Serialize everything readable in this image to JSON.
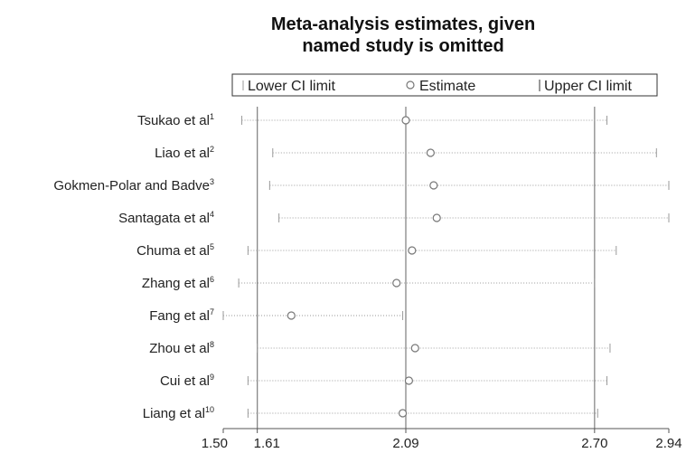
{
  "chart_data": {
    "type": "forest",
    "title_lines": [
      "Meta-analysis estimates, given",
      "named study is omitted"
    ],
    "legend": {
      "lower": "Lower CI limit",
      "estimate": "Estimate",
      "upper": "Upper CI limit",
      "placement": "top"
    },
    "x_ticks": [
      {
        "value": 1.5,
        "label": "1.50"
      },
      {
        "value": 1.61,
        "label": "1.61"
      },
      {
        "value": 2.09,
        "label": "2.09"
      },
      {
        "value": 2.7,
        "label": "2.70"
      },
      {
        "value": 2.94,
        "label": "2.94"
      }
    ],
    "xlim": [
      1.5,
      2.94
    ],
    "reference_lines": [
      1.61,
      2.09,
      2.7
    ],
    "studies": [
      {
        "name": "Tsukao et al",
        "ref": "1",
        "lower": 1.56,
        "estimate": 2.09,
        "upper": 2.74
      },
      {
        "name": "Liao et al",
        "ref": "2",
        "lower": 1.66,
        "estimate": 2.17,
        "upper": 2.9
      },
      {
        "name": "Gokmen-Polar and Badve",
        "ref": "3",
        "lower": 1.65,
        "estimate": 2.18,
        "upper": 2.94
      },
      {
        "name": "Santagata et al",
        "ref": "4",
        "lower": 1.68,
        "estimate": 2.19,
        "upper": 2.94
      },
      {
        "name": "Chuma et al",
        "ref": "5",
        "lower": 1.58,
        "estimate": 2.11,
        "upper": 2.77
      },
      {
        "name": "Zhang et al",
        "ref": "6",
        "lower": 1.55,
        "estimate": 2.06,
        "upper": 2.7
      },
      {
        "name": "Fang et al",
        "ref": "7",
        "lower": 1.5,
        "estimate": 1.72,
        "upper": 2.08
      },
      {
        "name": "Zhou et al",
        "ref": "8",
        "lower": 1.61,
        "estimate": 2.12,
        "upper": 2.75
      },
      {
        "name": "Cui et al",
        "ref": "9",
        "lower": 1.58,
        "estimate": 2.1,
        "upper": 2.74
      },
      {
        "name": "Liang et al",
        "ref": "10",
        "lower": 1.58,
        "estimate": 2.08,
        "upper": 2.71
      }
    ],
    "colors": {
      "axis": "#555555",
      "ci": "#9a9a9a",
      "marker": "#777777",
      "reference": "#888888",
      "text": "#222222"
    }
  }
}
